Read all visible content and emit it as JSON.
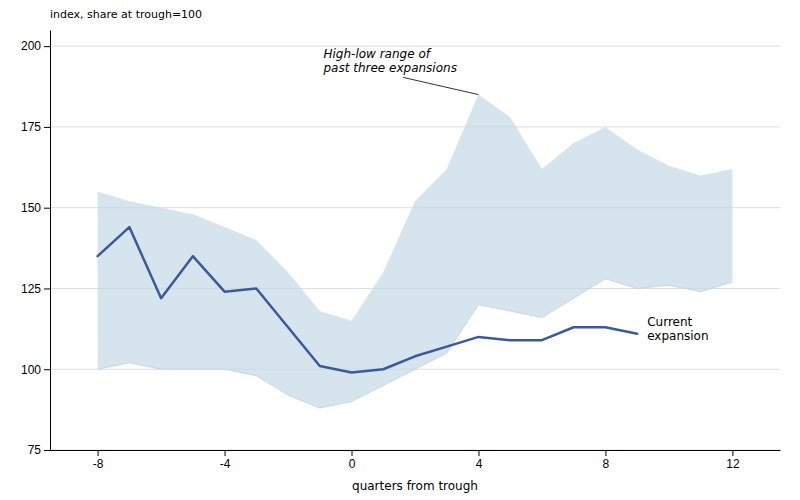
{
  "chart_data": {
    "type": "line",
    "ylabel": "index, share at trough=100",
    "xlabel": "quarters from trough",
    "xlim": [
      -9.5,
      13.5
    ],
    "ylim": [
      75,
      205
    ],
    "xticks": [
      -8,
      -4,
      0,
      4,
      8,
      12
    ],
    "yticks": [
      75,
      100,
      125,
      150,
      175,
      200
    ],
    "grid": true,
    "series": [
      {
        "type": "area",
        "x": [
          -8,
          -7,
          -6,
          -5,
          -4,
          -3,
          -2,
          -1,
          0,
          1,
          2,
          3,
          4,
          5,
          6,
          7,
          8,
          9,
          10,
          11,
          12
        ],
        "high": [
          155,
          152,
          150,
          148,
          144,
          140,
          130,
          118,
          115,
          130,
          152,
          162,
          185,
          178,
          162,
          170,
          175,
          168,
          163,
          160,
          162
        ],
        "low": [
          100,
          102,
          100,
          100,
          100,
          98,
          92,
          88,
          90,
          95,
          100,
          105,
          120,
          118,
          116,
          122,
          128,
          125,
          126,
          124,
          127
        ],
        "color": "#c5d8e5"
      },
      {
        "type": "line",
        "x": [
          -8,
          -7,
          -6,
          -5,
          -4,
          -3,
          -2,
          -1,
          0,
          1,
          2,
          3,
          4,
          5,
          6,
          7,
          8,
          9
        ],
        "values": [
          135,
          144,
          122,
          135,
          124,
          125,
          113,
          101,
          99,
          100,
          104,
          107,
          110,
          109,
          109,
          113,
          113,
          111
        ],
        "color": "#3a5a9a"
      }
    ],
    "annotations": [
      {
        "text": "High-low range of\npast three expansions"
      },
      {
        "text": "Current\nexpansion"
      }
    ]
  }
}
